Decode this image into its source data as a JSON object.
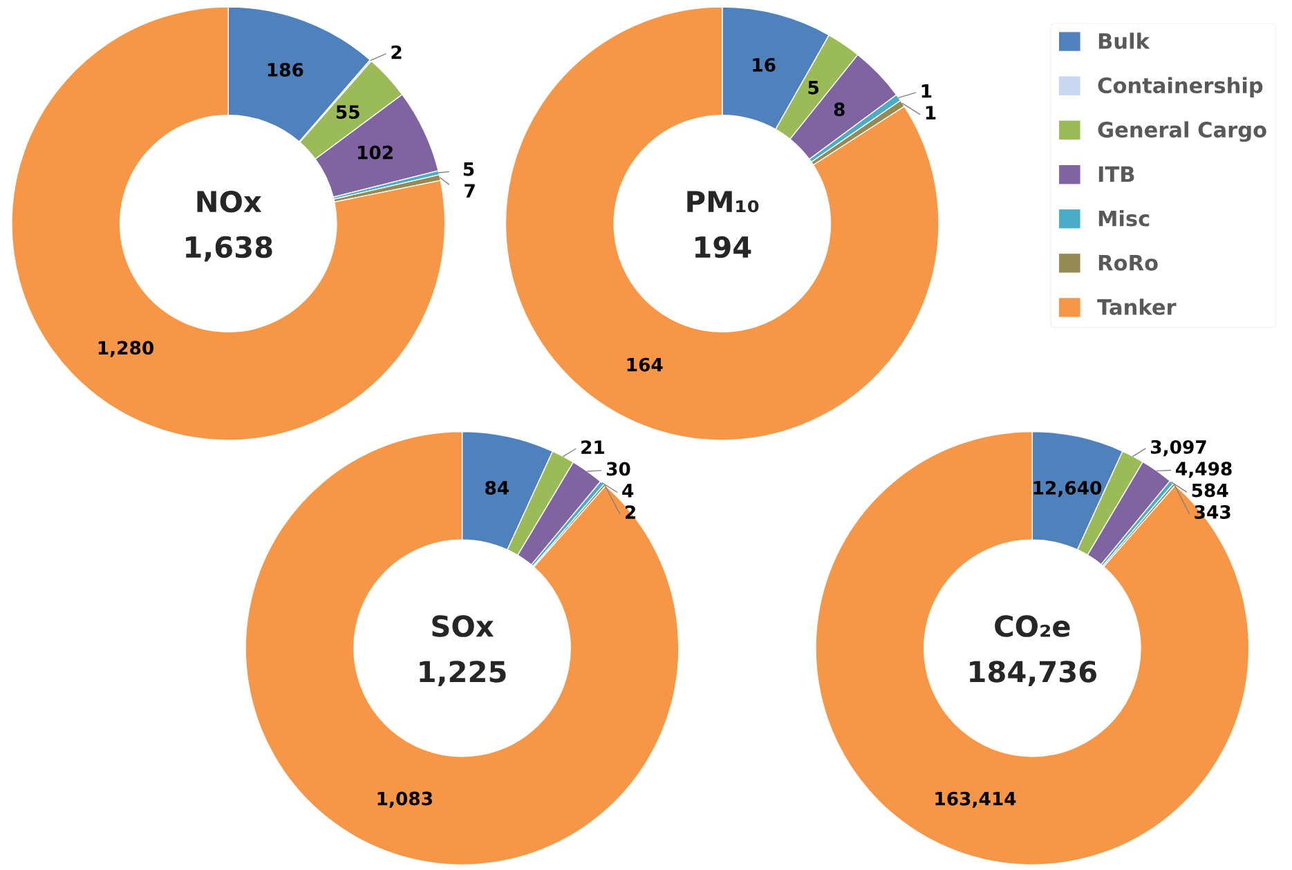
{
  "chart_data": [
    {
      "type": "donut",
      "title": "NOx",
      "subtitle": "1,638",
      "legend": "right",
      "categories": [
        "Bulk",
        "Containership",
        "General Cargo",
        "ITB",
        "Misc",
        "RoRo",
        "Tanker"
      ],
      "values": [
        186,
        2,
        55,
        102,
        5,
        7,
        1280
      ],
      "value_labels": [
        "186",
        "2",
        "55",
        "102",
        "5",
        "7",
        "1,280"
      ],
      "colors": [
        "#4f81bd",
        "#c6d9f1",
        "#9bbb59",
        "#8064a2",
        "#4bacc6",
        "#948a54",
        "#f79646"
      ]
    },
    {
      "type": "donut",
      "title": "PM₁₀",
      "subtitle": "194",
      "categories": [
        null,
        null,
        null,
        null,
        null,
        null,
        null
      ],
      "values": [
        16,
        0,
        5,
        8,
        1,
        1,
        164
      ],
      "value_labels": [
        "16",
        null,
        "5",
        "8",
        "1",
        "1",
        "164"
      ],
      "colors": [
        "#4f81bd",
        "#c6d9f1",
        "#9bbb59",
        "#8064a2",
        "#4bacc6",
        "#948a54",
        "#f79646"
      ]
    },
    {
      "type": "donut",
      "title": "SOx",
      "subtitle": "1,225",
      "categories": [
        null,
        null,
        null,
        null,
        null,
        null,
        null
      ],
      "values": [
        84,
        0,
        21,
        30,
        4,
        2,
        1083
      ],
      "value_labels": [
        "84",
        null,
        "21",
        "30",
        "4",
        "2",
        "1,083"
      ],
      "colors": [
        "#4f81bd",
        "#c6d9f1",
        "#9bbb59",
        "#8064a2",
        "#4bacc6",
        "#948a54",
        "#f79646"
      ]
    },
    {
      "type": "donut",
      "title": "CO₂e",
      "subtitle": "184,736",
      "categories": [
        null,
        null,
        null,
        null,
        null,
        null,
        null
      ],
      "values": [
        12640,
        0,
        3097,
        4498,
        584,
        343,
        163414
      ],
      "value_labels": [
        "12,640",
        null,
        "3,097",
        "4,498",
        "584",
        "343",
        "163,414"
      ],
      "colors": [
        "#4f81bd",
        "#c6d9f1",
        "#9bbb59",
        "#8064a2",
        "#4bacc6",
        "#948a54",
        "#f79646"
      ]
    }
  ]
}
